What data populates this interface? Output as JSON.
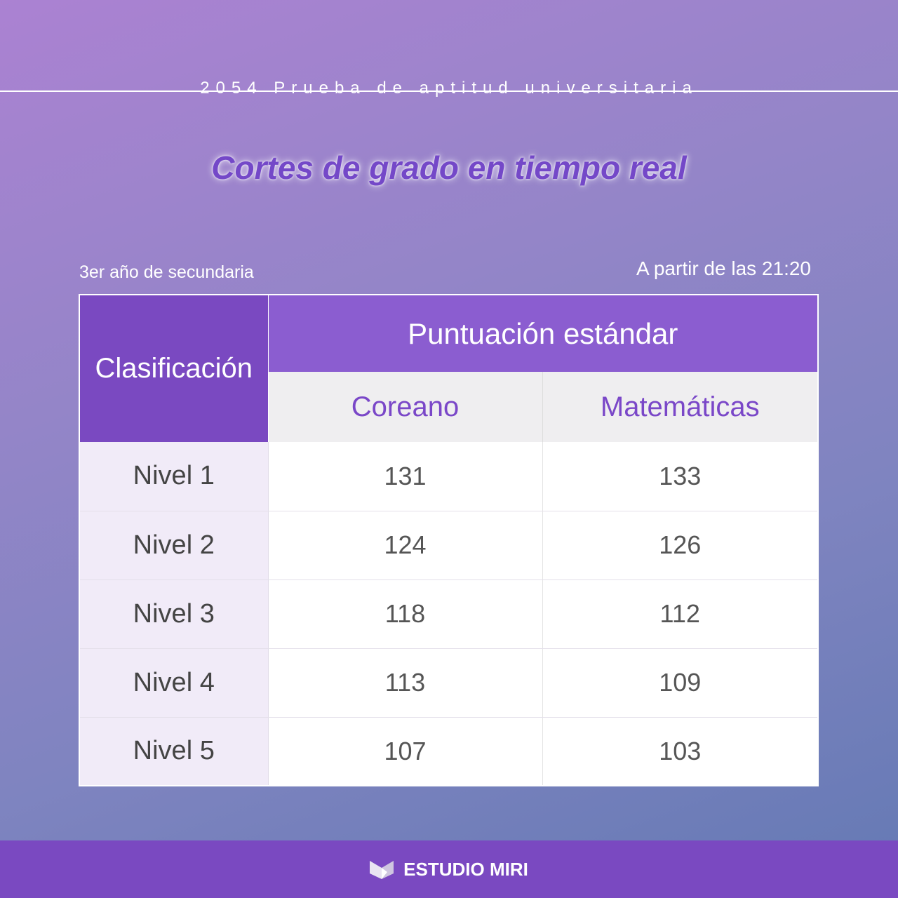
{
  "header": {
    "subtitle": "2054 Prueba de aptitud universitaria",
    "title": "Cortes de grado en tiempo real"
  },
  "meta": {
    "grade": "3er año de secundaria",
    "as_of": "A partir de las 21:20"
  },
  "table": {
    "col_classification": "Clasificación",
    "col_group": "Puntuación estándar",
    "subjects": [
      "Coreano",
      "Matemáticas"
    ],
    "rows": [
      {
        "level": "Nivel 1",
        "korean": "131",
        "math": "133"
      },
      {
        "level": "Nivel 2",
        "korean": "124",
        "math": "126"
      },
      {
        "level": "Nivel 3",
        "korean": "118",
        "math": "112"
      },
      {
        "level": "Nivel 4",
        "korean": "113",
        "math": "109"
      },
      {
        "level": "Nivel 5",
        "korean": "107",
        "math": "103"
      }
    ]
  },
  "footer": {
    "brand": "ESTUDIO MIRI",
    "logo_icon": "open-book-logo-icon"
  },
  "colors": {
    "accent": "#7a49c1",
    "header": "#8b5dd0"
  }
}
